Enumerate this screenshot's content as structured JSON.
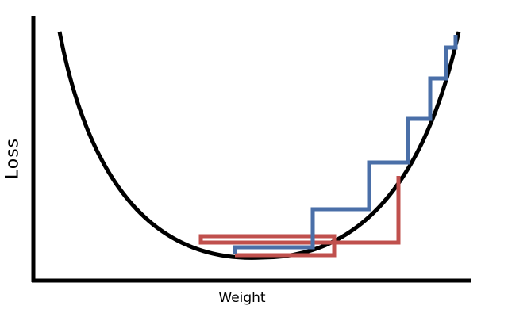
{
  "diagram": {
    "x_axis_label": "Weight",
    "y_axis_label": "Loss",
    "colors": {
      "curve": "#000000",
      "axes": "#000000",
      "high_learning_rate_path": "#c0504d",
      "low_learning_rate_path": "#4a6fa8"
    }
  }
}
